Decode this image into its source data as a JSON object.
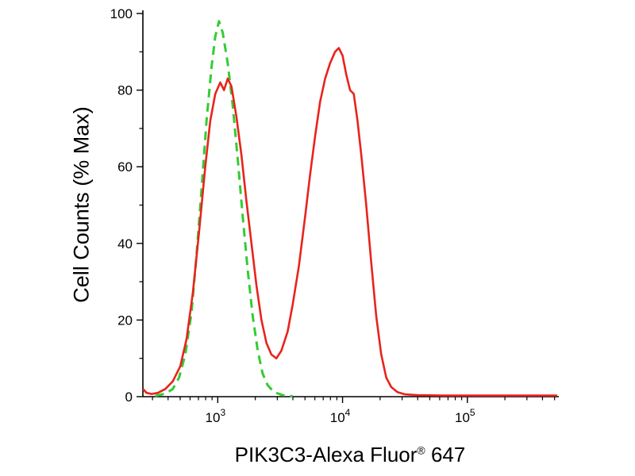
{
  "page": {
    "background": "#ffffff"
  },
  "chart_data": {
    "type": "line",
    "subtype": "flow-cytometry-histogram-overlay",
    "title": "",
    "ylabel": "Cell Counts (% Max)",
    "xlabel_parts": {
      "main": "PIK3C3-Alexa Fluor",
      "sup": "®",
      "suffix": " 647"
    },
    "x_axis": {
      "scale": "log10",
      "min_log": 2.4,
      "max_log": 5.72,
      "major_ticks_log": [
        3,
        4,
        5
      ],
      "tick_base": "10",
      "tick_exponents": [
        "3",
        "4",
        "5"
      ]
    },
    "y_axis": {
      "min": 0,
      "max": 100,
      "major_ticks": [
        0,
        20,
        40,
        60,
        80,
        100
      ],
      "minor_step": 10
    },
    "legend": "none",
    "grid": false,
    "series": [
      {
        "name": "green-dashed-curve",
        "color": "#33cc33",
        "style": "dashed",
        "line_width": 3,
        "peak": {
          "x_log": 3.01,
          "y": 98
        },
        "points": [
          [
            2.5,
            0.2
          ],
          [
            2.58,
            0.8
          ],
          [
            2.64,
            2
          ],
          [
            2.69,
            5
          ],
          [
            2.74,
            11
          ],
          [
            2.79,
            22
          ],
          [
            2.83,
            37
          ],
          [
            2.87,
            54
          ],
          [
            2.91,
            72
          ],
          [
            2.95,
            86
          ],
          [
            2.98,
            94
          ],
          [
            3.01,
            98
          ],
          [
            3.04,
            95
          ],
          [
            3.08,
            87
          ],
          [
            3.12,
            76
          ],
          [
            3.16,
            62
          ],
          [
            3.2,
            47
          ],
          [
            3.24,
            33
          ],
          [
            3.28,
            21
          ],
          [
            3.32,
            12
          ],
          [
            3.36,
            6
          ],
          [
            3.4,
            3
          ],
          [
            3.45,
            1.2
          ],
          [
            3.52,
            0.4
          ],
          [
            3.6,
            0.1
          ]
        ]
      },
      {
        "name": "red-solid-curve",
        "color": "#e8231d",
        "style": "solid",
        "line_width": 2.6,
        "peaks": [
          {
            "x_log": 3.08,
            "y": 83
          },
          {
            "x_log": 3.97,
            "y": 91
          }
        ],
        "points": [
          [
            2.4,
            2
          ],
          [
            2.43,
            1
          ],
          [
            2.47,
            0.7
          ],
          [
            2.52,
            1
          ],
          [
            2.58,
            2
          ],
          [
            2.64,
            4
          ],
          [
            2.7,
            8
          ],
          [
            2.75,
            15
          ],
          [
            2.8,
            27
          ],
          [
            2.85,
            43
          ],
          [
            2.9,
            60
          ],
          [
            2.94,
            72
          ],
          [
            2.98,
            79
          ],
          [
            3.02,
            82
          ],
          [
            3.05,
            80
          ],
          [
            3.08,
            83
          ],
          [
            3.11,
            81
          ],
          [
            3.15,
            73
          ],
          [
            3.19,
            63
          ],
          [
            3.23,
            51
          ],
          [
            3.27,
            40
          ],
          [
            3.31,
            29
          ],
          [
            3.35,
            20
          ],
          [
            3.39,
            14
          ],
          [
            3.43,
            11
          ],
          [
            3.47,
            10
          ],
          [
            3.51,
            12
          ],
          [
            3.56,
            17
          ],
          [
            3.6,
            24
          ],
          [
            3.65,
            34
          ],
          [
            3.7,
            47
          ],
          [
            3.74,
            58
          ],
          [
            3.78,
            68
          ],
          [
            3.82,
            77
          ],
          [
            3.86,
            83
          ],
          [
            3.9,
            87
          ],
          [
            3.94,
            90
          ],
          [
            3.97,
            91
          ],
          [
            4.0,
            89
          ],
          [
            4.03,
            84
          ],
          [
            4.06,
            80
          ],
          [
            4.09,
            79
          ],
          [
            4.12,
            72
          ],
          [
            4.15,
            63
          ],
          [
            4.19,
            50
          ],
          [
            4.23,
            35
          ],
          [
            4.27,
            21
          ],
          [
            4.31,
            11
          ],
          [
            4.35,
            5
          ],
          [
            4.39,
            2.5
          ],
          [
            4.44,
            1.2
          ],
          [
            4.5,
            0.6
          ],
          [
            4.6,
            0.4
          ],
          [
            4.8,
            0.3
          ],
          [
            5.1,
            0.3
          ],
          [
            5.4,
            0.3
          ],
          [
            5.72,
            0.3
          ]
        ]
      }
    ]
  }
}
